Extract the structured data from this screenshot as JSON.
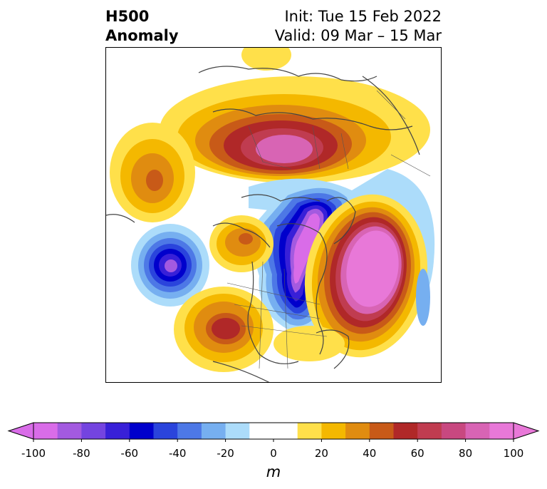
{
  "header": {
    "title_line1": "H500",
    "title_line2": "Anomaly",
    "init_text": "Init: Tue 15 Feb 2022",
    "valid_text": "Valid: 09 Mar – 15 Mar"
  },
  "map": {
    "projection": "polar-stereographic",
    "region": "Northern Hemisphere",
    "anomaly_centers": [
      {
        "sign": "positive",
        "approx_value_m": 70,
        "region": "Siberia / Arctic Russia"
      },
      {
        "sign": "negative",
        "approx_value_m": -100,
        "region": "Hudson Bay / Central Canada"
      },
      {
        "sign": "positive",
        "approx_value_m": 100,
        "region": "North Atlantic / Greenland"
      },
      {
        "sign": "negative",
        "approx_value_m": -90,
        "region": "North Pacific / Gulf of Alaska"
      },
      {
        "sign": "positive",
        "approx_value_m": 50,
        "region": "Bering Sea / NE Asia"
      },
      {
        "sign": "positive",
        "approx_value_m": 60,
        "region": "Southwestern United States"
      },
      {
        "sign": "positive",
        "approx_value_m": 50,
        "region": "Alaska / Yukon"
      }
    ]
  },
  "colorbar": {
    "unit": "m",
    "extend": "both",
    "ticks": [
      "-100",
      "-80",
      "-60",
      "-40",
      "-20",
      "0",
      "20",
      "40",
      "60",
      "80",
      "100"
    ],
    "levels": [
      -100,
      -90,
      -80,
      -70,
      -60,
      -50,
      -40,
      -30,
      -20,
      -10,
      10,
      20,
      30,
      40,
      50,
      60,
      70,
      80,
      90,
      100
    ],
    "colors": [
      "#d96ce8",
      "#a35ae0",
      "#7444e0",
      "#3820d8",
      "#0000cc",
      "#2a44dc",
      "#4d78e6",
      "#76aff0",
      "#acdcfa",
      "#ffffff",
      "#ffe04a",
      "#f4b800",
      "#e08c10",
      "#c85a18",
      "#b02828",
      "#c03c50",
      "#c84880",
      "#d864b4",
      "#e878d8"
    ],
    "over_color": "#e878d8",
    "under_color": "#d96ce8"
  }
}
